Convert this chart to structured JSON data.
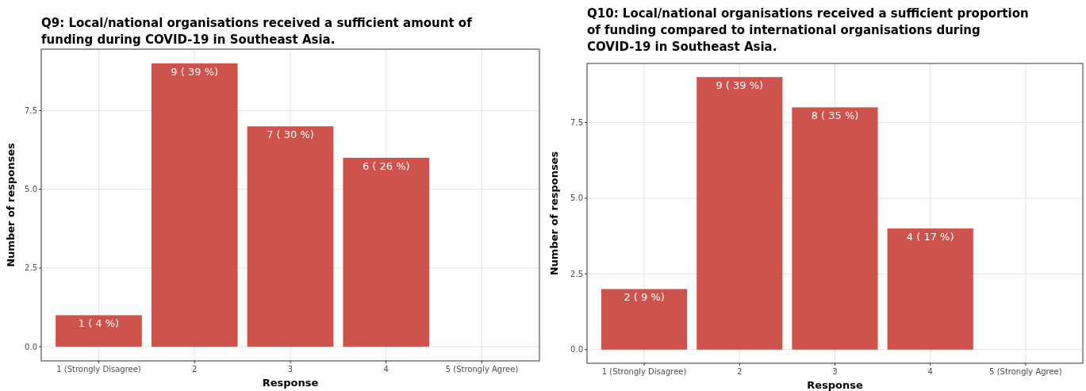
{
  "chart_data": [
    {
      "type": "bar",
      "title": "Q9: Local/national organisations received a sufficient amount of funding during COVID-19 in Southeast Asia.",
      "xlabel": "Response",
      "ylabel": "Number of responses",
      "categories": [
        "1 (Strongly Disagree)",
        "2",
        "3",
        "4",
        "5 (Strongly Agree)"
      ],
      "values": [
        1,
        9,
        7,
        6,
        null
      ],
      "value_labels": [
        "1 ( 4 %)",
        "9 ( 39 %)",
        "7 ( 30 %)",
        "6 ( 26 %)",
        null
      ],
      "color": "#cd534c",
      "ylim": [
        -0.45,
        9.45
      ],
      "yticks": [
        {
          "value": 0,
          "label": "0.0"
        },
        {
          "value": 2.5,
          "label": "2.5"
        },
        {
          "value": 5,
          "label": "5.0"
        },
        {
          "value": 7.5,
          "label": "7.5"
        }
      ],
      "grid": true
    },
    {
      "type": "bar",
      "title": "Q10: Local/national organisations received a sufficient proportion of funding compared to international organisations during COVID-19 in Southeast Asia.",
      "xlabel": "Response",
      "ylabel": "Number of responses",
      "categories": [
        "1 (Strongly Disagree)",
        "2",
        "3",
        "4",
        "5 (Strongly Agree)"
      ],
      "values": [
        2,
        9,
        8,
        4,
        null
      ],
      "value_labels": [
        "2 ( 9 %)",
        "9 ( 39 %)",
        "8 ( 35 %)",
        "4 ( 17 %)",
        null
      ],
      "color": "#cd534c",
      "ylim": [
        -0.45,
        9.45
      ],
      "yticks": [
        {
          "value": 0,
          "label": "0.0"
        },
        {
          "value": 2.5,
          "label": "2.5"
        },
        {
          "value": 5,
          "label": "5.0"
        },
        {
          "value": 7.5,
          "label": "7.5"
        }
      ],
      "grid": true
    }
  ]
}
